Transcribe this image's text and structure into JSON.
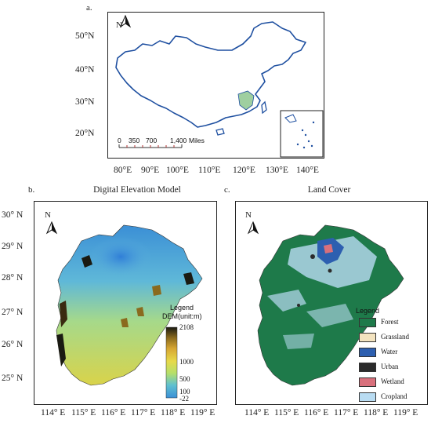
{
  "panel_a": {
    "label": "a.",
    "lat_ticks": [
      "50°N",
      "40°N",
      "30°N",
      "20°N"
    ],
    "lon_ticks": [
      "80°E",
      "90°E",
      "100°E",
      "110°E",
      "120°E",
      "130°E",
      "140°E"
    ],
    "scale_bar": {
      "numbers": [
        "0",
        "350",
        "700",
        "1,400"
      ],
      "unit": "Miles"
    },
    "north_label": "N"
  },
  "panel_b": {
    "label": "b.",
    "title": "Digital Elevation Model",
    "lat_ticks": [
      "30° N",
      "29° N",
      "28° N",
      "27° N",
      "26° N",
      "25° N"
    ],
    "lon_ticks": [
      "114° E",
      "115° E",
      "116° E",
      "117° E",
      "118° E",
      "119° E"
    ],
    "north_label": "N",
    "legend": {
      "title_1": "Legend",
      "title_2": "DEM(unit:m)",
      "max_value": "2108",
      "mid_values": [
        "1000",
        "500",
        "100"
      ],
      "min_value": "-22",
      "ramp_colors": [
        "#3b8fd6",
        "#5fc0d0",
        "#b6df6a",
        "#e7d94a",
        "#d6a633",
        "#8a6a1e",
        "#1a1a12"
      ]
    }
  },
  "panel_c": {
    "label": "c.",
    "title": "Land Cover",
    "lat_ticks": [
      "30° N",
      "29° N",
      "28° N",
      "27° N",
      "26° N",
      "25° N"
    ],
    "lon_ticks": [
      "114° E",
      "115° E",
      "116° E",
      "117° E",
      "118° E",
      "119° E"
    ],
    "north_label": "N",
    "legend": {
      "title": "Legend",
      "items": [
        {
          "label": "Forest",
          "color": "#1e7a4a"
        },
        {
          "label": "Grassland",
          "color": "#f3e3bf"
        },
        {
          "label": "Water",
          "color": "#2d5fb0"
        },
        {
          "label": "Urban",
          "color": "#2b2b2b"
        },
        {
          "label": "Wetland",
          "color": "#d9707c"
        },
        {
          "label": "Cropland",
          "color": "#b9dcf2"
        }
      ]
    }
  }
}
